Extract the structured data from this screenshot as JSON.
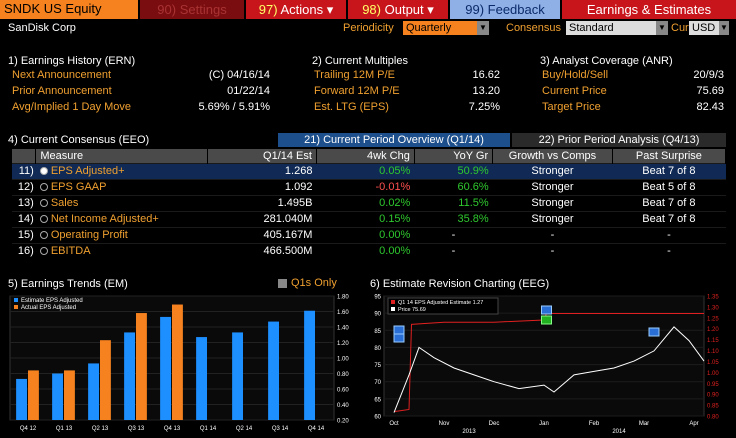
{
  "toolbar": {
    "ticker": "SNDK US Equity",
    "settings_num": "90)",
    "settings_label": "Settings",
    "actions_num": "97)",
    "actions_label": "Actions",
    "output_num": "98)",
    "output_label": "Output",
    "feedback_num": "99)",
    "feedback_label": "Feedback",
    "title": "Earnings & Estimates"
  },
  "header": {
    "company": "SanDisk Corp",
    "periodicity_label": "Periodicity",
    "periodicity_value": "Quarterly",
    "consensus_label": "Consensus",
    "consensus_value": "Standard",
    "cur_label": "Cur",
    "cur_value": "USD"
  },
  "earnings_history": {
    "title": "1) Earnings History (ERN)",
    "rows": [
      {
        "label": "Next Announcement",
        "value": "(C)  04/16/14"
      },
      {
        "label": "Prior Announcement",
        "value": "01/22/14"
      },
      {
        "label": "Avg/Implied 1 Day Move",
        "value": "5.69% / 5.91%"
      }
    ]
  },
  "current_multiples": {
    "title": "2) Current Multiples",
    "rows": [
      {
        "label": "Trailing 12M P/E",
        "value": "16.62"
      },
      {
        "label": "Forward 12M P/E",
        "value": "13.20"
      },
      {
        "label": "Est. LTG (EPS)",
        "value": "7.25%"
      }
    ]
  },
  "analyst_coverage": {
    "title": "3) Analyst Coverage (ANR)",
    "rows": [
      {
        "label": "Buy/Hold/Sell",
        "value": "20/9/3"
      },
      {
        "label": "Current Price",
        "value": "75.69"
      },
      {
        "label": "Target Price",
        "value": "82.43"
      }
    ]
  },
  "consensus": {
    "title": "4) Current Consensus (EEO)",
    "tab1": "21) Current Period Overview (Q1/14)",
    "tab2": "22) Prior Period Analysis (Q4/13)",
    "columns": [
      "Measure",
      "Q1/14 Est",
      "4wk Chg",
      "YoY Gr",
      "Growth vs Comps",
      "Past Surprise"
    ],
    "rows": [
      {
        "n": "11)",
        "measure": "EPS Adjusted+",
        "est": "1.268",
        "chg": "0.05%",
        "chg_cls": "pos",
        "yoy": "50.9%",
        "yoy_cls": "pos",
        "comps": "Stronger",
        "surprise": "Beat 7 of 8"
      },
      {
        "n": "12)",
        "measure": "EPS GAAP",
        "est": "1.092",
        "chg": "-0.01%",
        "chg_cls": "neg",
        "yoy": "60.6%",
        "yoy_cls": "pos",
        "comps": "Stronger",
        "surprise": "Beat 5 of 8"
      },
      {
        "n": "13)",
        "measure": "Sales",
        "est": "1.495B",
        "chg": "0.02%",
        "chg_cls": "pos",
        "yoy": "11.5%",
        "yoy_cls": "pos",
        "comps": "Stronger",
        "surprise": "Beat 7 of 8"
      },
      {
        "n": "14)",
        "measure": "Net Income Adjusted+",
        "est": "281.040M",
        "chg": "0.15%",
        "chg_cls": "pos",
        "yoy": "35.8%",
        "yoy_cls": "pos",
        "comps": "Stronger",
        "surprise": "Beat 7 of 8"
      },
      {
        "n": "15)",
        "measure": "Operating Profit",
        "est": "405.167M",
        "chg": "0.00%",
        "chg_cls": "pos",
        "yoy": "-",
        "yoy_cls": "c",
        "comps": "-",
        "surprise": "-"
      },
      {
        "n": "16)",
        "measure": "EBITDA",
        "est": "466.500M",
        "chg": "0.00%",
        "chg_cls": "pos",
        "yoy": "-",
        "yoy_cls": "c",
        "comps": "-",
        "surprise": "-"
      }
    ]
  },
  "trends": {
    "title": "5) Earnings Trends (EM)",
    "q1s_label": "Q1s Only",
    "legend_est": "Estimate EPS Adjusted",
    "legend_act": "Actual EPS Adjusted"
  },
  "revision": {
    "title": "6) Estimate Revision Charting (EEG)",
    "legend_est": "Q1 14 EPS Adjusted Estimate  1.27",
    "legend_price": "Price                                   75.69"
  },
  "chart_data": [
    {
      "type": "bar",
      "title": "5) Earnings Trends (EM)",
      "categories": [
        "Q4 12",
        "Q1 13",
        "Q2 13",
        "Q3 13",
        "Q4 13",
        "Q1 14",
        "Q2 14",
        "Q3 14",
        "Q4 14"
      ],
      "series": [
        {
          "name": "Estimate EPS Adjusted",
          "color": "#1e8fff",
          "values": [
            0.73,
            0.8,
            0.93,
            1.33,
            1.53,
            1.27,
            1.33,
            1.47,
            1.61
          ]
        },
        {
          "name": "Actual EPS Adjusted",
          "color": "#f5821f",
          "values": [
            0.84,
            0.84,
            1.23,
            1.58,
            1.69,
            null,
            null,
            null,
            null
          ]
        }
      ],
      "ylim": [
        0.2,
        1.8
      ],
      "yticks": [
        "0.20",
        "0.40",
        "0.60",
        "0.80",
        "1.00",
        "1.20",
        "1.40",
        "1.60",
        "1.80"
      ]
    },
    {
      "type": "line",
      "title": "6) Estimate Revision Charting (EEG)",
      "xticks": [
        "Oct",
        "Nov",
        "Dec",
        "Jan",
        "Feb",
        "Mar",
        "Apr"
      ],
      "year_labels": [
        "2013",
        "2014"
      ],
      "left_yticks": [
        "60",
        "65",
        "70",
        "75",
        "80",
        "85",
        "90",
        "95"
      ],
      "right_yticks": [
        "0.80",
        "0.85",
        "0.90",
        "0.95",
        "1.00",
        "1.05",
        "1.10",
        "1.15",
        "1.20",
        "1.25",
        "1.30",
        "1.35"
      ],
      "series": [
        {
          "name": "Q1 14 EPS Adjusted Estimate",
          "color": "#e02020",
          "axis": "right",
          "x": [
            0,
            0.3,
            0.35,
            1,
            2,
            3.0,
            3.05,
            3.1,
            4,
            5,
            5.3,
            5.6,
            6.2
          ],
          "values": [
            0.82,
            0.83,
            1.22,
            1.23,
            1.23,
            1.24,
            1.27,
            1.27,
            1.27,
            1.27,
            1.27,
            1.27,
            1.27
          ]
        },
        {
          "name": "Price",
          "color": "#ffffff",
          "axis": "left",
          "x": [
            0,
            0.3,
            0.5,
            0.8,
            1.2,
            1.6,
            2.0,
            2.5,
            3.0,
            3.2,
            3.6,
            4.0,
            4.4,
            4.8,
            5.2,
            5.6,
            5.9,
            6.2
          ],
          "values": [
            61,
            72,
            80,
            77,
            74,
            72,
            70,
            68,
            69,
            67,
            72,
            73,
            74,
            76,
            79,
            86,
            82,
            76
          ]
        }
      ]
    }
  ]
}
